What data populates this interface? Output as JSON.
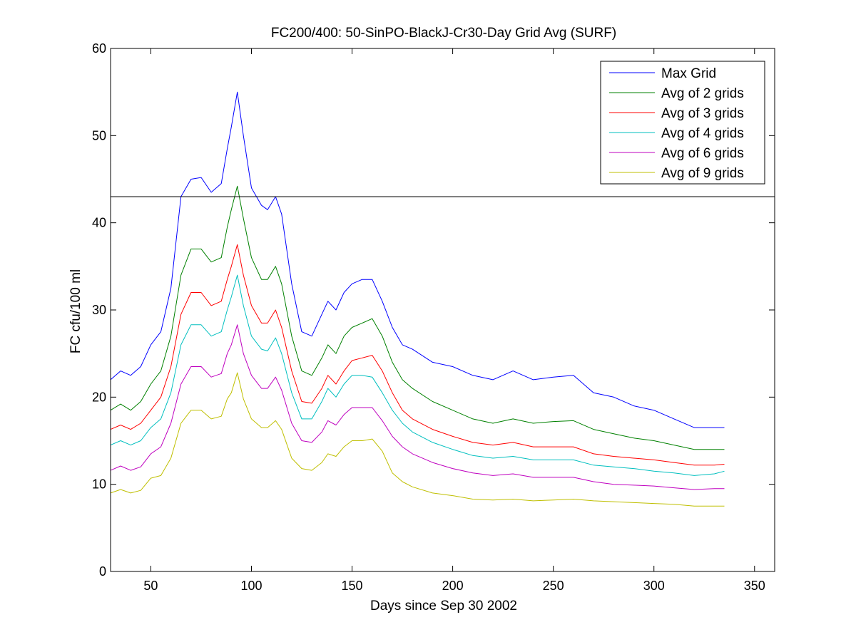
{
  "chart_data": {
    "type": "line",
    "title": "FC200/400: 50-SinPO-BlackJ-Cr30-Day Grid Avg (SURF)",
    "xlabel": "Days since Sep 30 2002",
    "ylabel": "FC cfu/100 ml",
    "xlim": [
      30,
      360
    ],
    "ylim": [
      0,
      60
    ],
    "xticks": [
      50,
      100,
      150,
      200,
      250,
      300,
      350
    ],
    "yticks": [
      0,
      10,
      20,
      30,
      40,
      50,
      60
    ],
    "grid": false,
    "legend_position": "top-right",
    "reference_line": {
      "y": 43
    },
    "x": [
      30,
      35,
      40,
      45,
      50,
      55,
      60,
      65,
      70,
      75,
      80,
      85,
      88,
      90,
      93,
      96,
      100,
      105,
      108,
      112,
      115,
      120,
      125,
      130,
      135,
      138,
      142,
      146,
      150,
      155,
      160,
      165,
      170,
      175,
      180,
      190,
      200,
      210,
      220,
      230,
      240,
      250,
      260,
      270,
      280,
      290,
      300,
      310,
      320,
      330,
      335
    ],
    "series": [
      {
        "name": "Max Grid",
        "color": "#0000ff",
        "values": [
          22.0,
          23.0,
          22.5,
          23.5,
          26.0,
          27.5,
          32.5,
          43.0,
          45.0,
          45.2,
          43.5,
          44.5,
          48.5,
          51.0,
          55.0,
          50.0,
          44.0,
          42.0,
          41.5,
          43.0,
          41.0,
          33.0,
          27.5,
          27.0,
          29.5,
          31.0,
          30.0,
          32.0,
          33.0,
          33.5,
          33.5,
          31.0,
          28.0,
          26.0,
          25.5,
          24.0,
          23.5,
          22.5,
          22.0,
          23.0,
          22.0,
          22.3,
          22.5,
          20.5,
          20.0,
          19.0,
          18.5,
          17.5,
          16.5,
          16.5,
          16.5
        ]
      },
      {
        "name": "Avg of 2 grids",
        "color": "#008000",
        "values": [
          18.5,
          19.2,
          18.5,
          19.5,
          21.5,
          23.0,
          27.0,
          34.0,
          37.0,
          37.0,
          35.5,
          36.0,
          39.5,
          41.5,
          44.2,
          40.5,
          36.0,
          33.5,
          33.5,
          35.0,
          33.0,
          27.0,
          23.0,
          22.5,
          24.5,
          26.0,
          25.0,
          27.0,
          28.0,
          28.5,
          29.0,
          27.0,
          24.0,
          22.0,
          21.0,
          19.5,
          18.5,
          17.5,
          17.0,
          17.5,
          17.0,
          17.2,
          17.3,
          16.3,
          15.8,
          15.3,
          15.0,
          14.5,
          14.0,
          14.0,
          14.0
        ]
      },
      {
        "name": "Avg of 3 grids",
        "color": "#ff0000",
        "values": [
          16.3,
          16.8,
          16.3,
          17.0,
          18.5,
          20.0,
          23.5,
          29.5,
          32.0,
          32.0,
          30.5,
          31.0,
          33.5,
          35.0,
          37.5,
          34.0,
          30.5,
          28.5,
          28.5,
          30.0,
          28.0,
          23.0,
          19.5,
          19.3,
          21.0,
          22.5,
          21.5,
          23.0,
          24.2,
          24.5,
          24.8,
          23.0,
          20.5,
          18.5,
          17.5,
          16.3,
          15.5,
          14.8,
          14.5,
          14.8,
          14.3,
          14.3,
          14.3,
          13.5,
          13.2,
          13.0,
          12.8,
          12.5,
          12.2,
          12.2,
          12.3
        ]
      },
      {
        "name": "Avg of 4 grids",
        "color": "#00bfbf",
        "values": [
          14.5,
          15.0,
          14.5,
          15.0,
          16.5,
          17.5,
          20.5,
          26.0,
          28.3,
          28.3,
          27.0,
          27.5,
          30.0,
          31.5,
          34.0,
          30.5,
          27.0,
          25.5,
          25.3,
          26.8,
          25.0,
          20.5,
          17.5,
          17.5,
          19.5,
          21.0,
          20.0,
          21.5,
          22.5,
          22.5,
          22.3,
          20.5,
          18.5,
          17.0,
          16.0,
          14.8,
          14.0,
          13.3,
          13.0,
          13.2,
          12.8,
          12.8,
          12.8,
          12.2,
          12.0,
          11.8,
          11.5,
          11.3,
          11.0,
          11.2,
          11.5
        ]
      },
      {
        "name": "Avg of 6 grids",
        "color": "#bf00bf",
        "values": [
          11.6,
          12.1,
          11.6,
          12.0,
          13.5,
          14.3,
          17.0,
          21.5,
          23.5,
          23.5,
          22.3,
          22.7,
          25.0,
          26.0,
          28.3,
          25.0,
          22.5,
          21.0,
          21.0,
          22.3,
          20.8,
          17.0,
          15.0,
          14.8,
          16.0,
          17.3,
          16.8,
          18.0,
          18.8,
          18.8,
          18.8,
          17.3,
          15.5,
          14.3,
          13.5,
          12.5,
          11.8,
          11.3,
          11.0,
          11.2,
          10.8,
          10.8,
          10.8,
          10.3,
          10.0,
          9.9,
          9.8,
          9.6,
          9.4,
          9.5,
          9.5
        ]
      },
      {
        "name": "Avg of 9 grids",
        "color": "#bfbf00",
        "values": [
          9.0,
          9.4,
          9.0,
          9.3,
          10.7,
          11.0,
          13.0,
          17.0,
          18.5,
          18.5,
          17.5,
          17.8,
          19.8,
          20.5,
          22.8,
          19.8,
          17.5,
          16.5,
          16.5,
          17.3,
          16.3,
          13.0,
          11.8,
          11.6,
          12.5,
          13.5,
          13.2,
          14.3,
          15.0,
          15.0,
          15.2,
          13.8,
          11.3,
          10.3,
          9.7,
          9.0,
          8.7,
          8.3,
          8.2,
          8.3,
          8.1,
          8.2,
          8.3,
          8.1,
          8.0,
          7.9,
          7.8,
          7.7,
          7.5,
          7.5,
          7.5
        ]
      }
    ]
  }
}
